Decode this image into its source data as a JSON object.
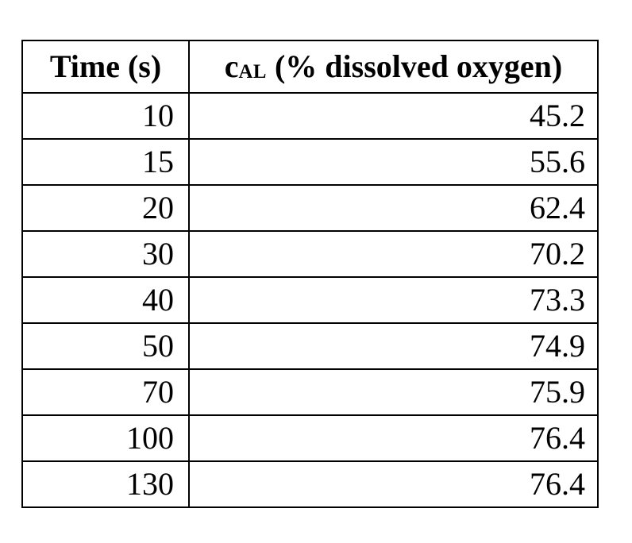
{
  "table": {
    "header": {
      "time_label": "Time (s)",
      "cal_prefix": "c",
      "cal_subscript": "AL",
      "cal_suffix": " (% dissolved oxygen)"
    },
    "rows": [
      {
        "time": "10",
        "cal": "45.2"
      },
      {
        "time": "15",
        "cal": "55.6"
      },
      {
        "time": "20",
        "cal": "62.4"
      },
      {
        "time": "30",
        "cal": "70.2"
      },
      {
        "time": "40",
        "cal": "73.3"
      },
      {
        "time": "50",
        "cal": "74.9"
      },
      {
        "time": "70",
        "cal": "75.9"
      },
      {
        "time": "100",
        "cal": "76.4"
      },
      {
        "time": "130",
        "cal": "76.4"
      }
    ]
  },
  "colors": {
    "border": "#000000",
    "text": "#000000",
    "background": "#ffffff"
  },
  "chart_data": {
    "type": "table",
    "title": "",
    "columns": [
      "Time (s)",
      "cAL (% dissolved oxygen)"
    ],
    "x": [
      10,
      15,
      20,
      30,
      40,
      50,
      70,
      100,
      130
    ],
    "series": [
      {
        "name": "cAL (% dissolved oxygen)",
        "values": [
          45.2,
          55.6,
          62.4,
          70.2,
          73.3,
          74.9,
          75.9,
          76.4,
          76.4
        ]
      }
    ]
  }
}
